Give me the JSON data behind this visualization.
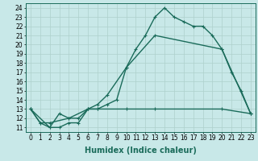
{
  "line1": {
    "x": [
      0,
      1,
      2,
      3,
      4,
      5,
      6,
      7,
      8,
      9,
      10,
      11,
      12,
      13,
      14,
      15,
      16,
      17,
      18,
      19,
      20,
      21,
      22,
      23
    ],
    "y": [
      13,
      11.5,
      11,
      11,
      11.5,
      11.5,
      13,
      13,
      13.5,
      14,
      17.5,
      19.5,
      21,
      23,
      24,
      23,
      22.5,
      22,
      22,
      21,
      19.5,
      17,
      15,
      12.5
    ]
  },
  "line2": {
    "x": [
      0,
      1,
      2,
      4,
      6,
      7,
      10,
      13,
      20,
      23
    ],
    "y": [
      13,
      11.5,
      11.5,
      12,
      13,
      13,
      13,
      13,
      13,
      12.5
    ]
  },
  "line3": {
    "x": [
      0,
      2,
      3,
      4,
      5,
      6,
      7,
      8,
      10,
      13,
      20,
      23
    ],
    "y": [
      13,
      11,
      12.5,
      12,
      12,
      13,
      13.5,
      14.5,
      17.5,
      21,
      19.5,
      12.5
    ]
  },
  "color": "#1a6b5a",
  "bg_color": "#c8e8e8",
  "grid_color": "#aed0cc",
  "xlabel": "Humidex (Indice chaleur)",
  "xlim": [
    -0.5,
    23.5
  ],
  "ylim": [
    10.5,
    24.5
  ],
  "yticks": [
    11,
    12,
    13,
    14,
    15,
    16,
    17,
    18,
    19,
    20,
    21,
    22,
    23,
    24
  ],
  "xticks": [
    0,
    1,
    2,
    3,
    4,
    5,
    6,
    7,
    8,
    9,
    10,
    11,
    12,
    13,
    14,
    15,
    16,
    17,
    18,
    19,
    20,
    21,
    22,
    23
  ],
  "marker": "+",
  "marker_size": 3.5,
  "linewidth": 1.0,
  "xlabel_fontsize": 7,
  "tick_fontsize": 5.5
}
